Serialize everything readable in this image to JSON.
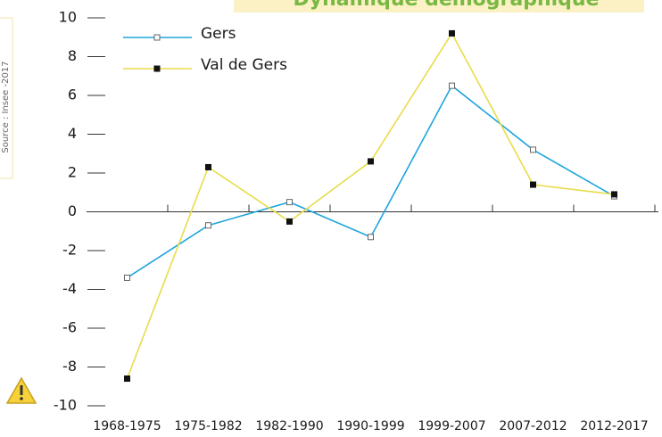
{
  "chart_data": {
    "type": "line",
    "title": "Dynamique démographique",
    "source": "Source : Insee -2017",
    "categories": [
      "1968-1975",
      "1975-1982",
      "1982-1990",
      "1990-1999",
      "1999-2007",
      "2007-2012",
      "2012-2017"
    ],
    "series": [
      {
        "name": "Gers",
        "color": "#1ea5dc",
        "values": [
          -3.4,
          -0.7,
          0.5,
          -1.3,
          6.5,
          3.2,
          0.8
        ]
      },
      {
        "name": "Val de Gers",
        "color": "#e8dc4a",
        "values": [
          -8.6,
          2.3,
          -0.5,
          2.6,
          9.2,
          1.4,
          0.9
        ]
      }
    ],
    "ylim": [
      -10,
      10
    ],
    "yticks": [
      -10,
      -8,
      -6,
      -4,
      -2,
      0,
      2,
      4,
      6,
      8,
      10
    ]
  }
}
